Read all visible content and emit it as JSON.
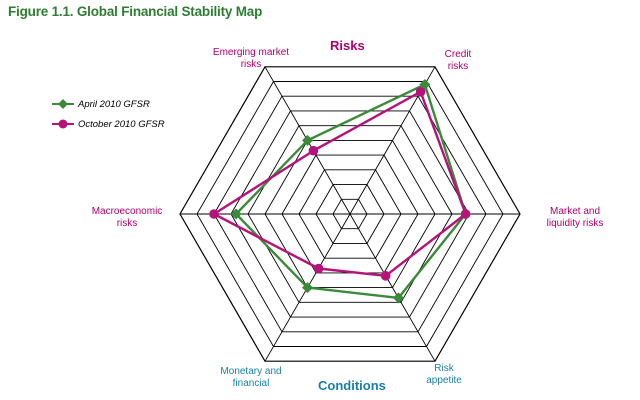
{
  "figure_title": "Figure 1.1. Global Financial Stability Map",
  "group_labels": {
    "risks": "Risks",
    "conditions": "Conditions"
  },
  "colors": {
    "april": "#3a8a3a",
    "october": "#b5127a",
    "grid": "#000000",
    "risks_text": "#b0006e",
    "conditions_text": "#1a7fa8",
    "title": "#2e7d32"
  },
  "chart_data": {
    "type": "radar",
    "title": "Figure 1.1. Global Financial Stability Map",
    "axes": [
      {
        "label": "Emerging market\nrisks",
        "group": "risks"
      },
      {
        "label": "Credit\nrisks",
        "group": "risks"
      },
      {
        "label": "Market and\nliquidity risks",
        "group": "risks"
      },
      {
        "label": "Risk\nappetite",
        "group": "conditions"
      },
      {
        "label": "Monetary and\nfinancial",
        "group": "conditions"
      },
      {
        "label": "Macroeconomic\nrisks",
        "group": "risks"
      }
    ],
    "rings": 10,
    "range": [
      0,
      10
    ],
    "grid": true,
    "legend": "left",
    "series": [
      {
        "name": "April 2010 GFSR",
        "color": "#3a8a3a",
        "marker": "diamond",
        "values": [
          5.0,
          8.8,
          6.8,
          5.7,
          5.0,
          6.7
        ]
      },
      {
        "name": "October 2010 GFSR",
        "color": "#b5127a",
        "marker": "circle",
        "values": [
          4.3,
          8.3,
          6.8,
          4.2,
          3.7,
          8.0
        ]
      }
    ]
  }
}
